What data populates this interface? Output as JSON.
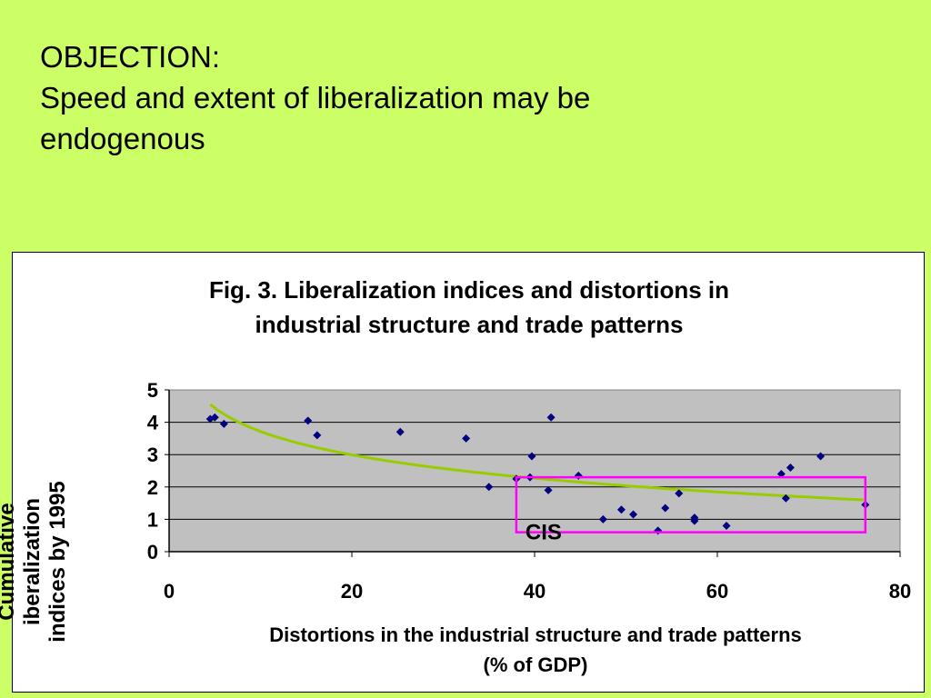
{
  "slide": {
    "title_line1": "OBJECTION:",
    "title_line2": "Speed and extent of liberalization may be",
    "title_line3": "endogenous"
  },
  "colors": {
    "background": "#ccff66",
    "plot_area": "#c0c0c0",
    "points": "#000080",
    "trend": "#99cc00",
    "highlight": "#ff00ff"
  },
  "chart_data": {
    "type": "scatter",
    "title_line1": "Fig. 3. Liberalization indices and distortions in",
    "title_line2": "industrial structure and trade patterns",
    "xlabel_line1": "Distortions in the industrial structure and trade patterns",
    "xlabel_line2": "(% of GDP)",
    "ylabel_line1": "Cumulative",
    "ylabel_line2": "iberalization",
    "ylabel_line3": "indices by 1995",
    "xlim": [
      0,
      80
    ],
    "ylim": [
      0,
      5
    ],
    "x_ticks": [
      "0",
      "20",
      "40",
      "60",
      "80"
    ],
    "y_ticks": [
      "0",
      "1",
      "2",
      "3",
      "4",
      "5"
    ],
    "grid": "horizontal",
    "legend": "none",
    "series": [
      {
        "points": [
          [
            4.5,
            4.1
          ],
          [
            5.0,
            4.15
          ],
          [
            6.0,
            3.95
          ],
          [
            15.2,
            4.05
          ],
          [
            16.2,
            3.6
          ],
          [
            25.3,
            3.7
          ],
          [
            32.5,
            3.5
          ],
          [
            35.0,
            2.0
          ],
          [
            38.0,
            2.25
          ],
          [
            39.5,
            2.3
          ],
          [
            39.7,
            2.95
          ],
          [
            41.5,
            1.9
          ],
          [
            41.8,
            4.15
          ],
          [
            44.8,
            2.35
          ],
          [
            47.5,
            1.0
          ],
          [
            49.5,
            1.3
          ],
          [
            50.8,
            1.15
          ],
          [
            53.5,
            0.65
          ],
          [
            54.3,
            1.35
          ],
          [
            55.8,
            1.8
          ],
          [
            57.5,
            1.05
          ],
          [
            57.5,
            0.95
          ],
          [
            61.0,
            0.8
          ],
          [
            67.0,
            2.4
          ],
          [
            67.5,
            1.65
          ],
          [
            68.0,
            2.6
          ],
          [
            71.3,
            2.95
          ],
          [
            76.2,
            1.45
          ]
        ]
      }
    ],
    "trendline": {
      "type": "logarithmic",
      "x_range": [
        4.5,
        76
      ],
      "y_start": 4.55,
      "y_end": 1.6
    },
    "annotation": {
      "label": "CIS",
      "box_x": [
        38.0,
        76.2
      ],
      "box_y": [
        0.6,
        2.3
      ]
    }
  }
}
